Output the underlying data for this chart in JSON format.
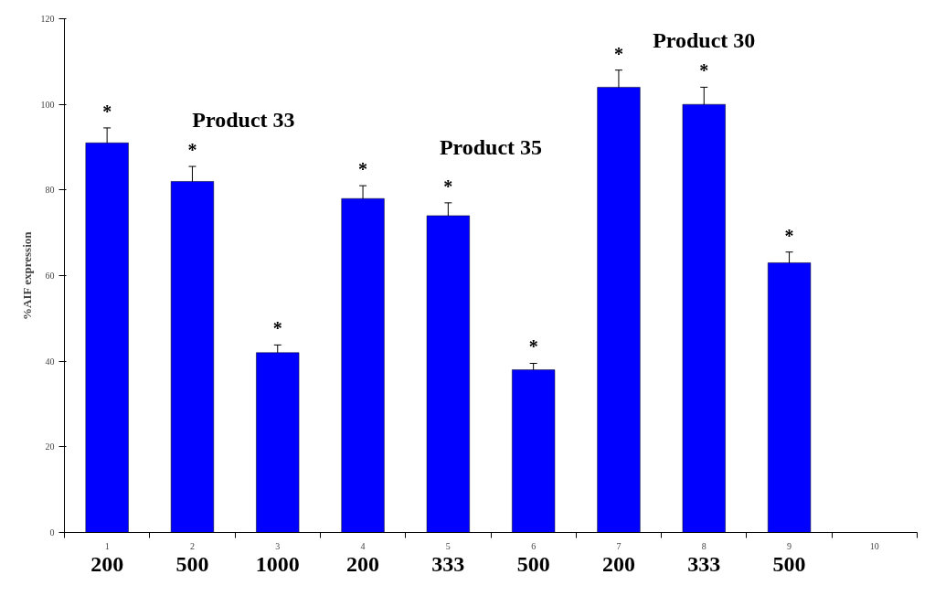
{
  "chart_data": {
    "type": "bar",
    "ylabel": "%AIF expression",
    "categories": [
      "1",
      "2",
      "3",
      "4",
      "5",
      "6",
      "7",
      "8",
      "9",
      "10"
    ],
    "values": [
      91,
      82,
      42,
      78,
      74,
      38,
      104,
      100,
      63,
      null
    ],
    "errors": [
      3.5,
      3.5,
      1.8,
      3,
      3,
      1.5,
      4,
      4,
      2.5,
      null
    ],
    "color": "#0000ff",
    "ylim": [
      0,
      120
    ],
    "yticks": [
      0,
      20,
      40,
      60,
      80,
      100,
      120
    ],
    "grid": false,
    "annotations": [
      "*",
      "*",
      "*",
      "*",
      "*",
      "*",
      "*",
      "*",
      "*",
      "Product 33",
      "Product 35",
      "Product 30",
      "200",
      "500",
      "1000",
      "200",
      "333",
      "500",
      "200",
      "333",
      "500"
    ]
  }
}
